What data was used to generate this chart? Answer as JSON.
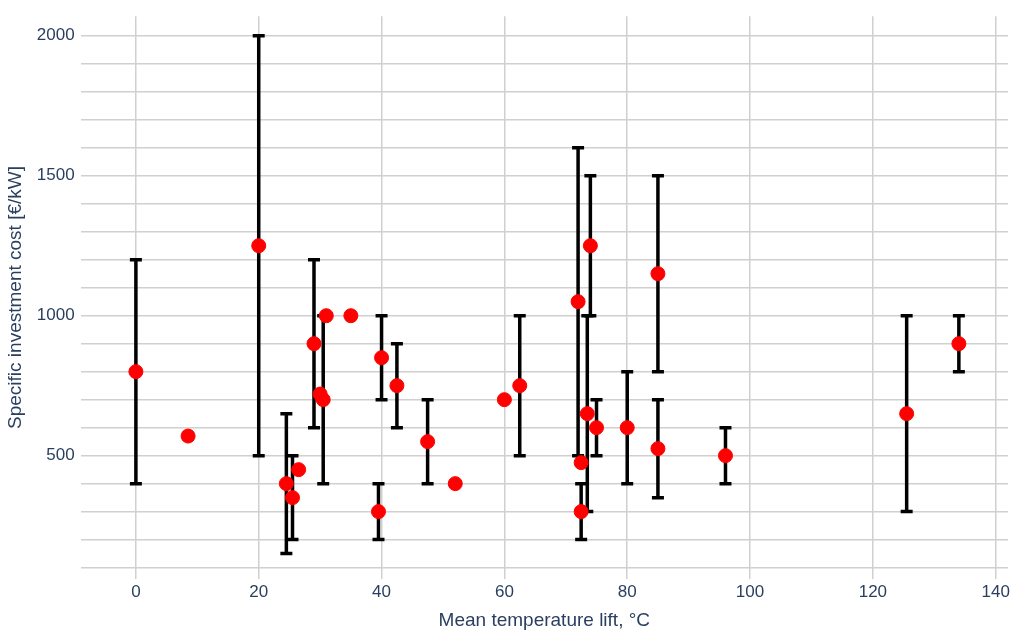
{
  "chart_data": {
    "type": "scatter",
    "xlabel": "Mean temperature lift, °C",
    "ylabel": "Specific investment cost [€/kW]",
    "x": [
      0,
      8.5,
      20,
      24.5,
      25.5,
      26.5,
      29,
      30,
      30.5,
      31,
      35,
      39.5,
      40,
      42.5,
      47.5,
      52,
      60,
      62.5,
      72,
      72.5,
      72.5,
      73.5,
      74,
      75,
      80,
      85,
      85,
      96,
      125.5,
      134
    ],
    "values": [
      800,
      570,
      1250,
      400,
      350,
      450,
      900,
      720,
      700,
      1000,
      1000,
      300,
      850,
      750,
      550,
      400,
      700,
      750,
      1050,
      475,
      300,
      650,
      1250,
      600,
      600,
      1150,
      525,
      500,
      650,
      900
    ],
    "errors": [
      [
        400,
        1200
      ],
      null,
      [
        500,
        2000
      ],
      [
        150,
        650
      ],
      [
        200,
        500
      ],
      null,
      [
        600,
        1200
      ],
      null,
      [
        400,
        1000
      ],
      null,
      null,
      [
        200,
        400
      ],
      [
        700,
        1000
      ],
      [
        600,
        900
      ],
      [
        400,
        700
      ],
      null,
      null,
      [
        500,
        1000
      ],
      [
        500,
        1600
      ],
      null,
      [
        200,
        400
      ],
      [
        300,
        1000
      ],
      [
        1000,
        1500
      ],
      [
        500,
        700
      ],
      [
        400,
        800
      ],
      [
        800,
        1500
      ],
      [
        350,
        700
      ],
      [
        400,
        600
      ],
      [
        300,
        1000
      ],
      [
        800,
        1000
      ]
    ],
    "color": "#ff0000",
    "marker": "circle",
    "xlim": [
      -9,
      142
    ],
    "xticks": [
      0,
      20,
      40,
      60,
      80,
      100,
      120,
      140
    ],
    "ylim": [
      60,
      2070
    ],
    "yticks": [
      {
        "value": 100,
        "label": null
      },
      {
        "value": 200,
        "label": null
      },
      {
        "value": 300,
        "label": null
      },
      {
        "value": 400,
        "label": null
      },
      500,
      {
        "value": 600,
        "label": null
      },
      {
        "value": 700,
        "label": null
      },
      {
        "value": 800,
        "label": null
      },
      {
        "value": 900,
        "label": null
      },
      1000,
      {
        "value": 1100,
        "label": null
      },
      {
        "value": 1200,
        "label": null
      },
      {
        "value": 1300,
        "label": null
      },
      {
        "value": 1400,
        "label": null
      },
      1500,
      {
        "value": 1600,
        "label": null
      },
      {
        "value": 1700,
        "label": null
      },
      {
        "value": 1800,
        "label": null
      },
      {
        "value": 1900,
        "label": null
      },
      2000
    ],
    "grid": true
  }
}
